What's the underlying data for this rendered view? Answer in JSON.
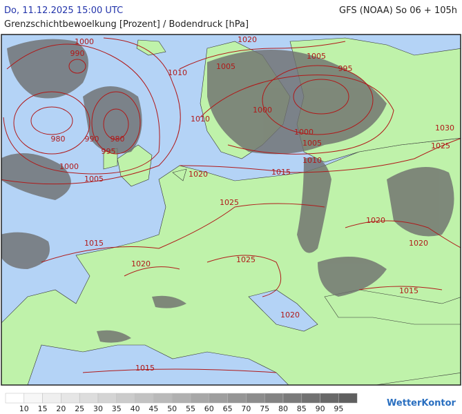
{
  "header": {
    "datetime": "Do, 11.12.2025 15:00 UTC",
    "model": "GFS (NOAA) So 06 + 105h",
    "subtitle": "Grenzschichtbewoelkung [Prozent] / Bodendruck [hPa]"
  },
  "isobar_labels": [
    1020,
    1000,
    990,
    1010,
    1005,
    1005,
    995,
    1000,
    1010,
    980,
    990,
    980,
    995,
    1000,
    1005,
    1000,
    1005,
    1010,
    1015,
    1020,
    1025,
    1030,
    1025,
    1020,
    1020,
    1015,
    1020,
    1025,
    1015,
    1020,
    1015
  ],
  "legend": {
    "labels": [
      10,
      15,
      20,
      25,
      30,
      35,
      40,
      45,
      50,
      55,
      60,
      65,
      70,
      75,
      80,
      85,
      90,
      95
    ],
    "colors": [
      "#ffffff",
      "#f7f7f7",
      "#efefef",
      "#e6e6e6",
      "#dddddd",
      "#d4d4d4",
      "#cbcbcb",
      "#c2c2c2",
      "#b9b9b9",
      "#b0b0b0",
      "#a7a7a7",
      "#9e9e9e",
      "#959595",
      "#8c8c8c",
      "#838383",
      "#7a7a7a",
      "#717171",
      "#686868",
      "#5f5f5f"
    ]
  },
  "logo": "WetterKontor"
}
